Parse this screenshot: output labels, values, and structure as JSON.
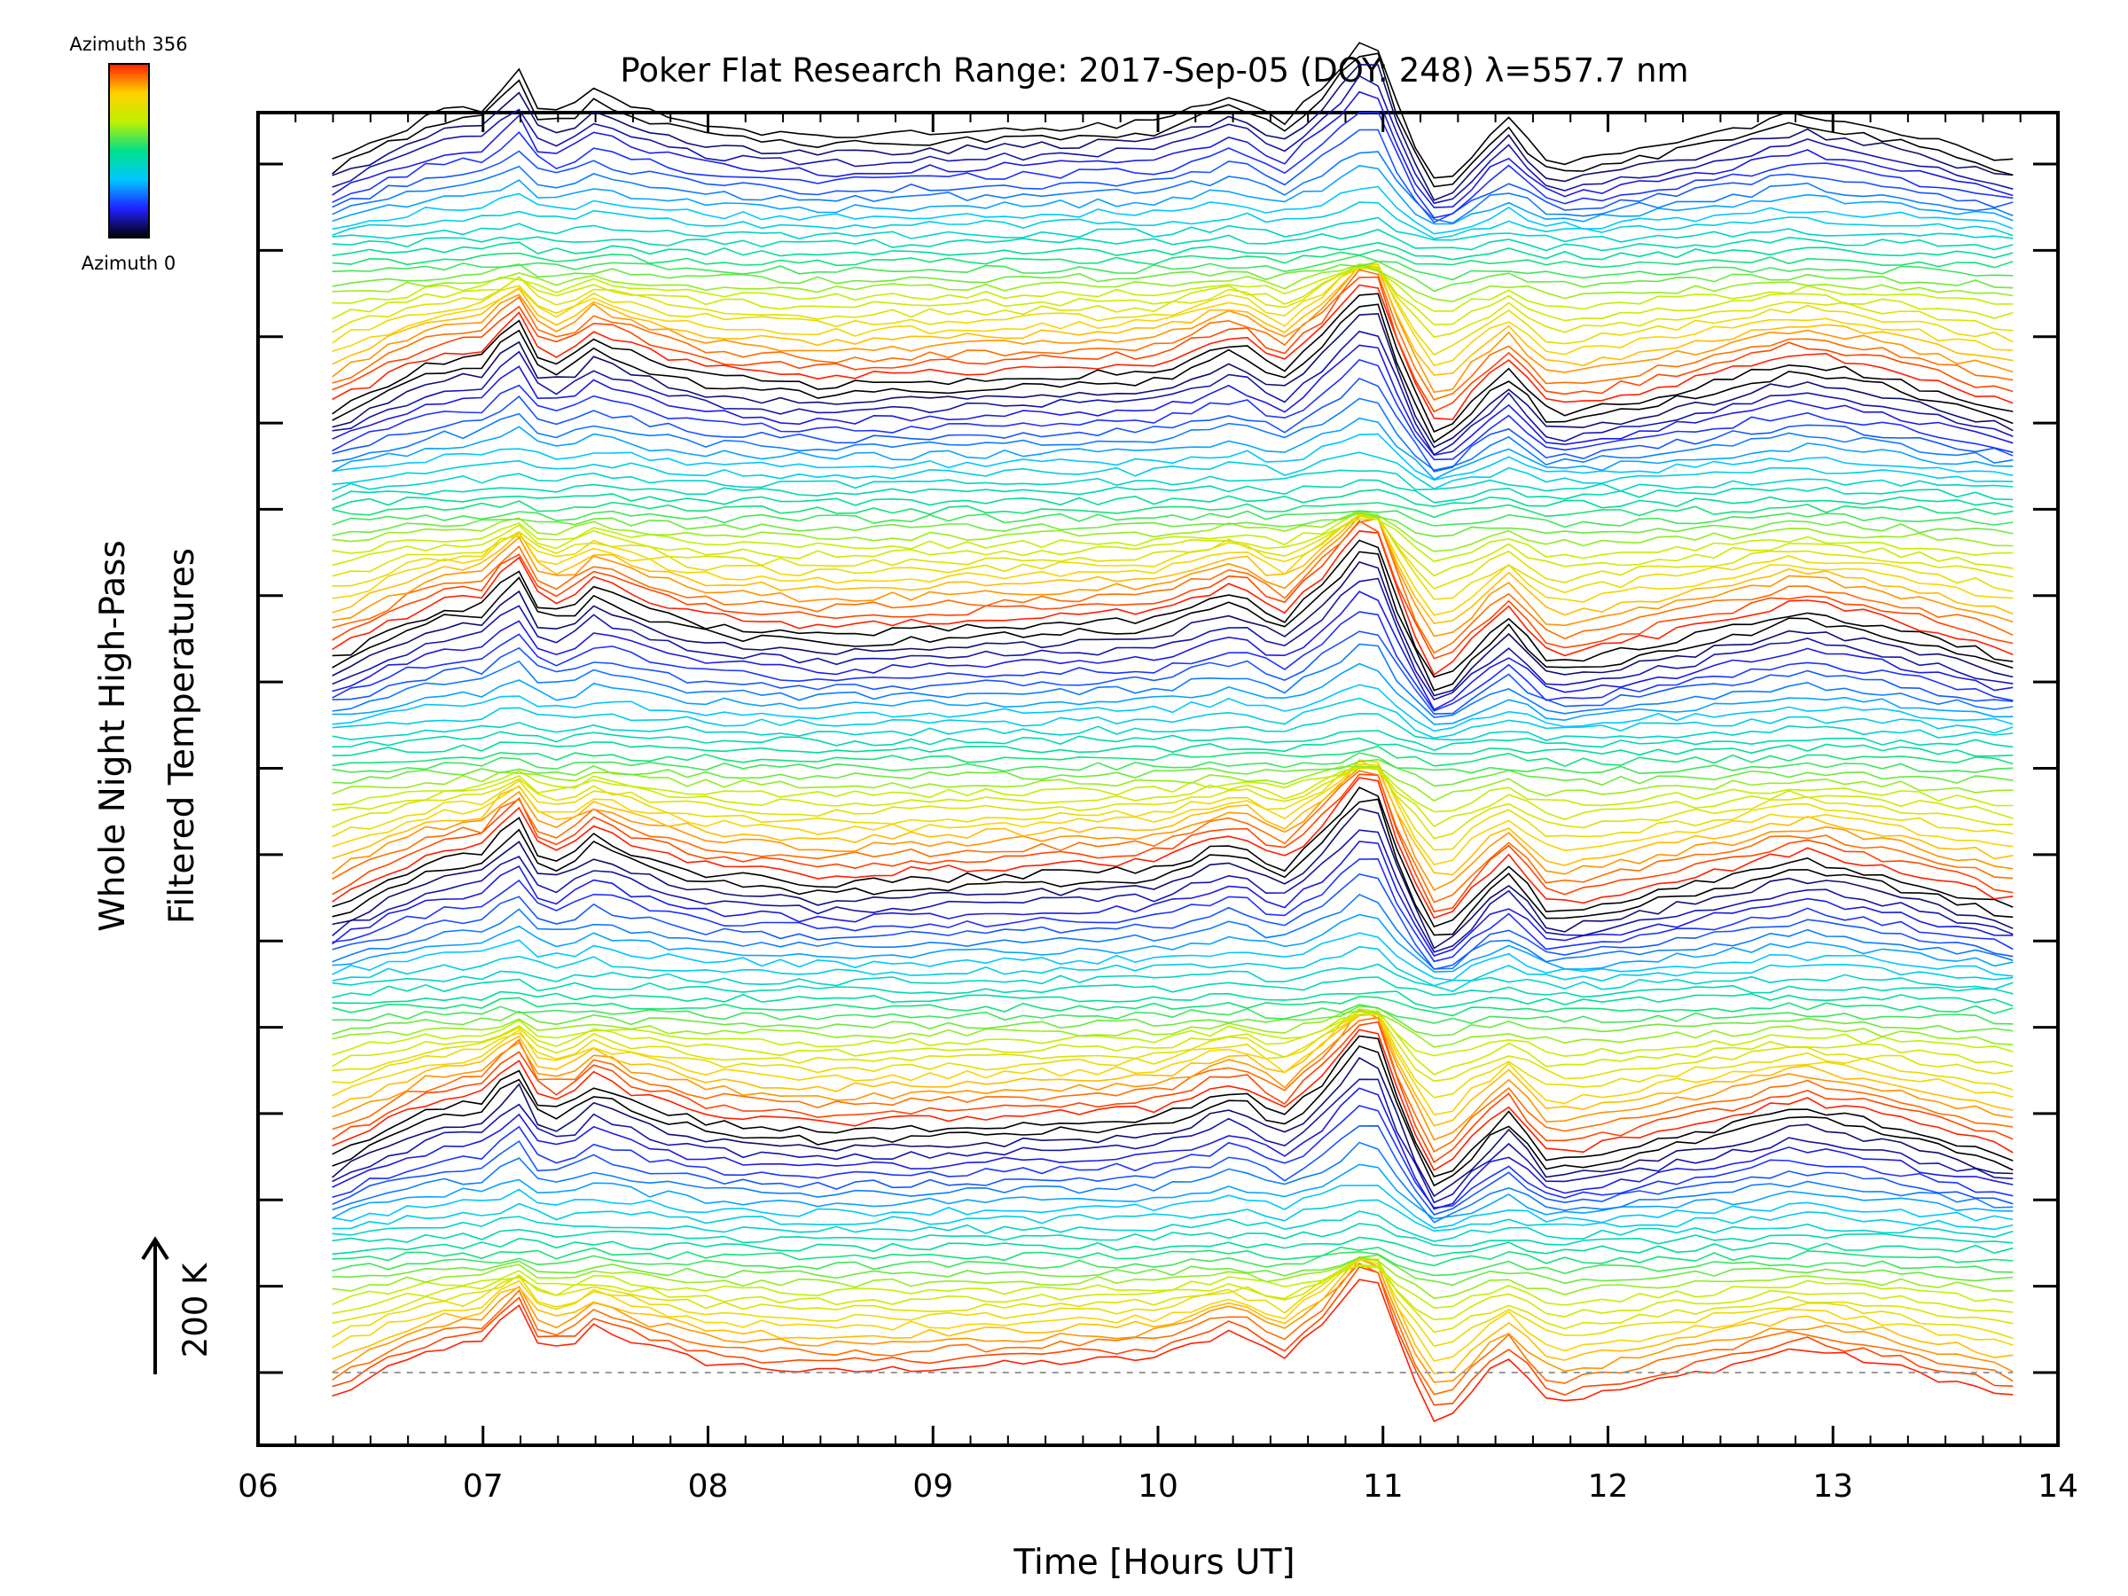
{
  "chart_data": {
    "type": "line",
    "title": "Poker Flat Research Range: 2017-Sep-05 (DOY: 248) λ=557.7 nm",
    "xlabel": "Time [Hours UT]",
    "ylabel_line1": "Whole Night High-Pass",
    "ylabel_line2": "Filtered Temperatures",
    "scale_label": "200 K",
    "colorbar": {
      "top_label": "Azimuth 356",
      "bottom_label": "Azimuth 0",
      "colormap": "rainbow",
      "colors": [
        "#000000",
        "#2020ff",
        "#00c8ff",
        "#00e08a",
        "#c0f000",
        "#ffd000",
        "#ff2000"
      ]
    },
    "xlim": [
      6,
      14
    ],
    "xticks": [
      "06",
      "07",
      "08",
      "09",
      "10",
      "11",
      "12",
      "13",
      "14"
    ],
    "ytick_count": 15,
    "series_count": 140,
    "series_time_range": [
      6.33,
      13.8
    ],
    "series_offset_K": 40,
    "baseline_style": "dashed gray",
    "grid": false,
    "legend": "none",
    "waveform_template": {
      "t": [
        6.33,
        6.6,
        6.8,
        7.0,
        7.15,
        7.27,
        7.4,
        7.5,
        7.6,
        7.75,
        8.0,
        8.5,
        9.0,
        9.5,
        10.0,
        10.35,
        10.55,
        10.75,
        10.95,
        11.1,
        11.25,
        11.4,
        11.55,
        11.75,
        12.0,
        12.5,
        12.85,
        13.2,
        13.55,
        13.8
      ],
      "value_K": [
        -10,
        2,
        10,
        12,
        28,
        8,
        12,
        20,
        15,
        10,
        4,
        0,
        2,
        4,
        6,
        18,
        5,
        22,
        44,
        4,
        -22,
        -6,
        8,
        -12,
        -8,
        2,
        10,
        4,
        -4,
        -10
      ]
    }
  }
}
